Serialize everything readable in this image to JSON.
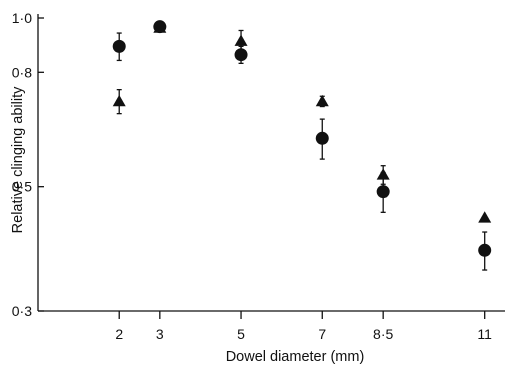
{
  "chart_data": {
    "type": "scatter",
    "xlabel": "Dowel diameter (mm)",
    "ylabel": "Relative clinging ability",
    "x_ticks": [
      2,
      3,
      5,
      7,
      8.5,
      11
    ],
    "x_tick_labels": [
      "2",
      "3",
      "5",
      "7",
      "8·5",
      "11"
    ],
    "y_ticks": [
      0.3,
      0.5,
      0.8,
      1.0
    ],
    "y_tick_labels": [
      "0·3",
      "0·5",
      "0·8",
      "1·0"
    ],
    "xlim": [
      0,
      11.5
    ],
    "ylim": [
      0.3,
      1.0
    ],
    "y_scale": "log",
    "grid": false,
    "series": [
      {
        "marker": "circle",
        "points": [
          {
            "x": 2,
            "y": 0.89,
            "err": 0.05
          },
          {
            "x": 3,
            "y": 0.965,
            "err": 0.012
          },
          {
            "x": 5,
            "y": 0.86,
            "err": 0.03
          },
          {
            "x": 7,
            "y": 0.61,
            "err": 0.05
          },
          {
            "x": 8.5,
            "y": 0.49,
            "err": 0.04
          },
          {
            "x": 11,
            "y": 0.385,
            "err": 0.03
          }
        ]
      },
      {
        "marker": "triangle",
        "points": [
          {
            "x": 2,
            "y": 0.71,
            "err": 0.035
          },
          {
            "x": 3,
            "y": 0.96,
            "err": 0.015
          },
          {
            "x": 5,
            "y": 0.91,
            "err": 0.04
          },
          {
            "x": 7,
            "y": 0.71,
            "err": 0.015
          },
          {
            "x": 8.5,
            "y": 0.525,
            "err": 0.02
          },
          {
            "x": 11,
            "y": 0.44,
            "err": 0
          }
        ]
      }
    ]
  }
}
